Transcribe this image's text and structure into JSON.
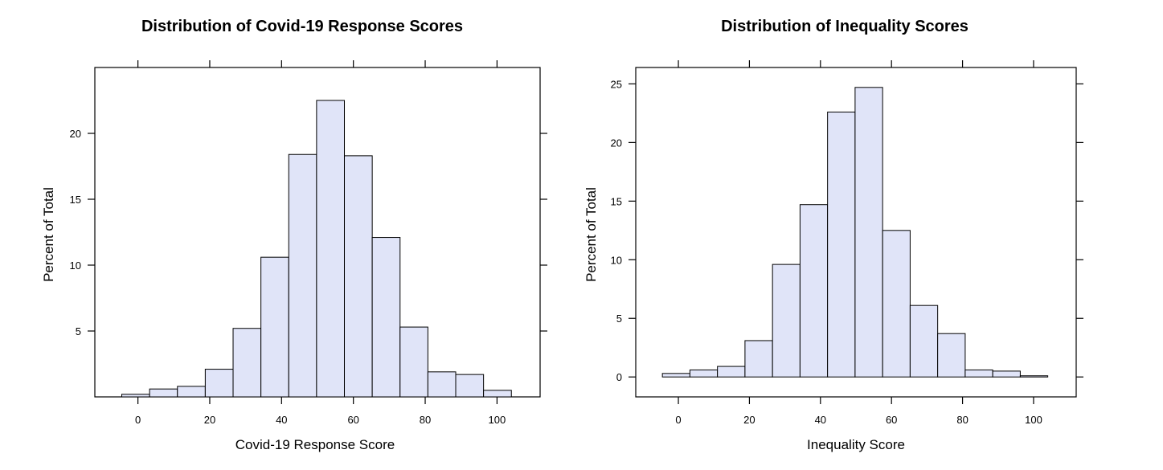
{
  "chart_data": [
    {
      "type": "bar",
      "subtype": "histogram",
      "title": "Distribution of Covid-19 Response Scores",
      "xlabel": "Covid-19 Response Score",
      "ylabel": "Percent of Total",
      "xlim": [
        -12,
        112
      ],
      "ylim": [
        0,
        25
      ],
      "xticks": [
        0,
        20,
        40,
        60,
        80,
        100
      ],
      "yticks": [
        5,
        10,
        15,
        20
      ],
      "bins": [
        {
          "start": -4.5,
          "end": 3.25,
          "value": 0.2
        },
        {
          "start": 3.25,
          "end": 11.0,
          "value": 0.6
        },
        {
          "start": 11.0,
          "end": 18.75,
          "value": 0.8
        },
        {
          "start": 18.75,
          "end": 26.5,
          "value": 2.1
        },
        {
          "start": 26.5,
          "end": 34.25,
          "value": 5.2
        },
        {
          "start": 34.25,
          "end": 42.0,
          "value": 10.6
        },
        {
          "start": 42.0,
          "end": 49.75,
          "value": 18.4
        },
        {
          "start": 49.75,
          "end": 57.5,
          "value": 22.5
        },
        {
          "start": 57.5,
          "end": 65.25,
          "value": 18.3
        },
        {
          "start": 65.25,
          "end": 73.0,
          "value": 12.1
        },
        {
          "start": 73.0,
          "end": 80.75,
          "value": 5.3
        },
        {
          "start": 80.75,
          "end": 88.5,
          "value": 1.9
        },
        {
          "start": 88.5,
          "end": 96.25,
          "value": 1.7
        },
        {
          "start": 96.25,
          "end": 104.0,
          "value": 0.5
        }
      ]
    },
    {
      "type": "bar",
      "subtype": "histogram",
      "title": "Distribution of Inequality Scores",
      "xlabel": "Inequality Score",
      "ylabel": "Percent of Total",
      "xlim": [
        -12,
        112
      ],
      "ylim": [
        -1.7,
        26.4
      ],
      "xticks": [
        0,
        20,
        40,
        60,
        80,
        100
      ],
      "yticks": [
        0,
        5,
        10,
        15,
        20,
        25
      ],
      "bins": [
        {
          "start": -4.5,
          "end": 3.25,
          "value": 0.3
        },
        {
          "start": 3.25,
          "end": 11.0,
          "value": 0.6
        },
        {
          "start": 11.0,
          "end": 18.75,
          "value": 0.9
        },
        {
          "start": 18.75,
          "end": 26.5,
          "value": 3.1
        },
        {
          "start": 26.5,
          "end": 34.25,
          "value": 9.6
        },
        {
          "start": 34.25,
          "end": 42.0,
          "value": 14.7
        },
        {
          "start": 42.0,
          "end": 49.75,
          "value": 22.6
        },
        {
          "start": 49.75,
          "end": 57.5,
          "value": 24.7
        },
        {
          "start": 57.5,
          "end": 65.25,
          "value": 12.5
        },
        {
          "start": 65.25,
          "end": 73.0,
          "value": 6.1
        },
        {
          "start": 73.0,
          "end": 80.75,
          "value": 3.7
        },
        {
          "start": 80.75,
          "end": 88.5,
          "value": 0.6
        },
        {
          "start": 88.5,
          "end": 96.25,
          "value": 0.5
        },
        {
          "start": 96.25,
          "end": 104.0,
          "value": 0.1
        }
      ]
    }
  ],
  "colors": {
    "bar_fill": "#e0e4f8",
    "bar_stroke": "#000000",
    "background": "#ffffff"
  }
}
